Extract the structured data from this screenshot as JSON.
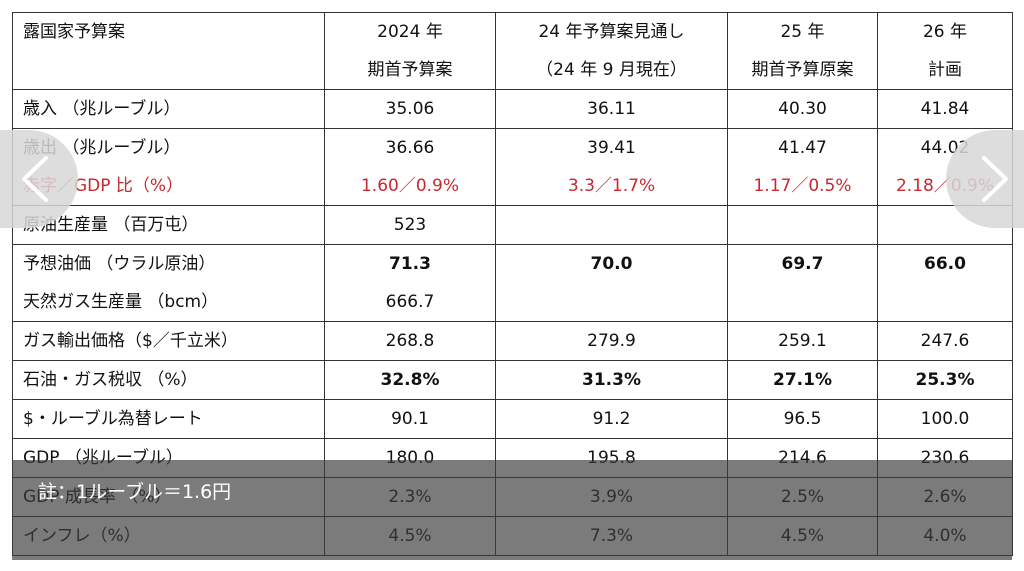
{
  "table": {
    "header": [
      [
        "露国家予算案",
        ""
      ],
      [
        "2024 年",
        "期首予算案"
      ],
      [
        "24 年予算案見通し",
        "（24 年 9 月現在）"
      ],
      [
        "25 年",
        "期首予算原案"
      ],
      [
        "26 年",
        "計画"
      ]
    ],
    "rows": [
      {
        "label": [
          "歳入 （兆ルーブル）"
        ],
        "cells": [
          [
            "35.06"
          ],
          [
            "36.11"
          ],
          [
            "40.30"
          ],
          [
            "41.84"
          ]
        ]
      },
      {
        "label": [
          "歳出 （兆ルーブル）",
          "赤字／GDP 比（%）"
        ],
        "cells": [
          [
            "36.66",
            "1.60／0.9%"
          ],
          [
            "39.41",
            "3.3／1.7%"
          ],
          [
            "41.47",
            "1.17／0.5%"
          ],
          [
            "44.02",
            "2.18／0.9%"
          ]
        ]
      },
      {
        "label": [
          "原油生産量 （百万屯）"
        ],
        "cells": [
          [
            "523"
          ],
          [
            ""
          ],
          [
            ""
          ],
          [
            ""
          ]
        ]
      },
      {
        "label": [
          "予想油価 （ウラル原油）",
          "天然ガス生産量 （bcm）"
        ],
        "cells": [
          [
            "71.3",
            "666.7"
          ],
          [
            "70.0",
            ""
          ],
          [
            "69.7",
            ""
          ],
          [
            "66.0",
            ""
          ]
        ]
      },
      {
        "label": [
          "ガス輸出価格（$／千立米）"
        ],
        "cells": [
          [
            "268.8"
          ],
          [
            "279.9"
          ],
          [
            "259.1"
          ],
          [
            "247.6"
          ]
        ]
      },
      {
        "label": [
          "石油・ガス税収 （%）"
        ],
        "cells": [
          [
            "32.8%"
          ],
          [
            "31.3%"
          ],
          [
            "27.1%"
          ],
          [
            "25.3%"
          ]
        ]
      },
      {
        "label": [
          "$・ルーブル為替レート"
        ],
        "cells": [
          [
            "90.1"
          ],
          [
            "91.2"
          ],
          [
            "96.5"
          ],
          [
            "100.0"
          ]
        ]
      },
      {
        "label": [
          "GDP （兆ルーブル）"
        ],
        "cells": [
          [
            "180.0"
          ],
          [
            "195.8"
          ],
          [
            "214.6"
          ],
          [
            "230.6"
          ]
        ]
      },
      {
        "label": [
          "GDP 成長率 （%）"
        ],
        "cells": [
          [
            "2.3%"
          ],
          [
            "3.9%"
          ],
          [
            "2.5%"
          ],
          [
            "2.6%"
          ]
        ]
      },
      {
        "label": [
          "インフレ（%）"
        ],
        "cells": [
          [
            "4.5%"
          ],
          [
            "7.3%"
          ],
          [
            "4.5%"
          ],
          [
            "4.0%"
          ]
        ]
      }
    ]
  },
  "caption": "註：1ルーブル＝1.6円",
  "nav": {
    "prev_icon": "chevron-left-icon",
    "next_icon": "chevron-right-icon"
  },
  "colors": {
    "deficit_red": "#c8282f",
    "overlay": "#3c3c3c",
    "nav_bg": "#d7d7d7"
  }
}
